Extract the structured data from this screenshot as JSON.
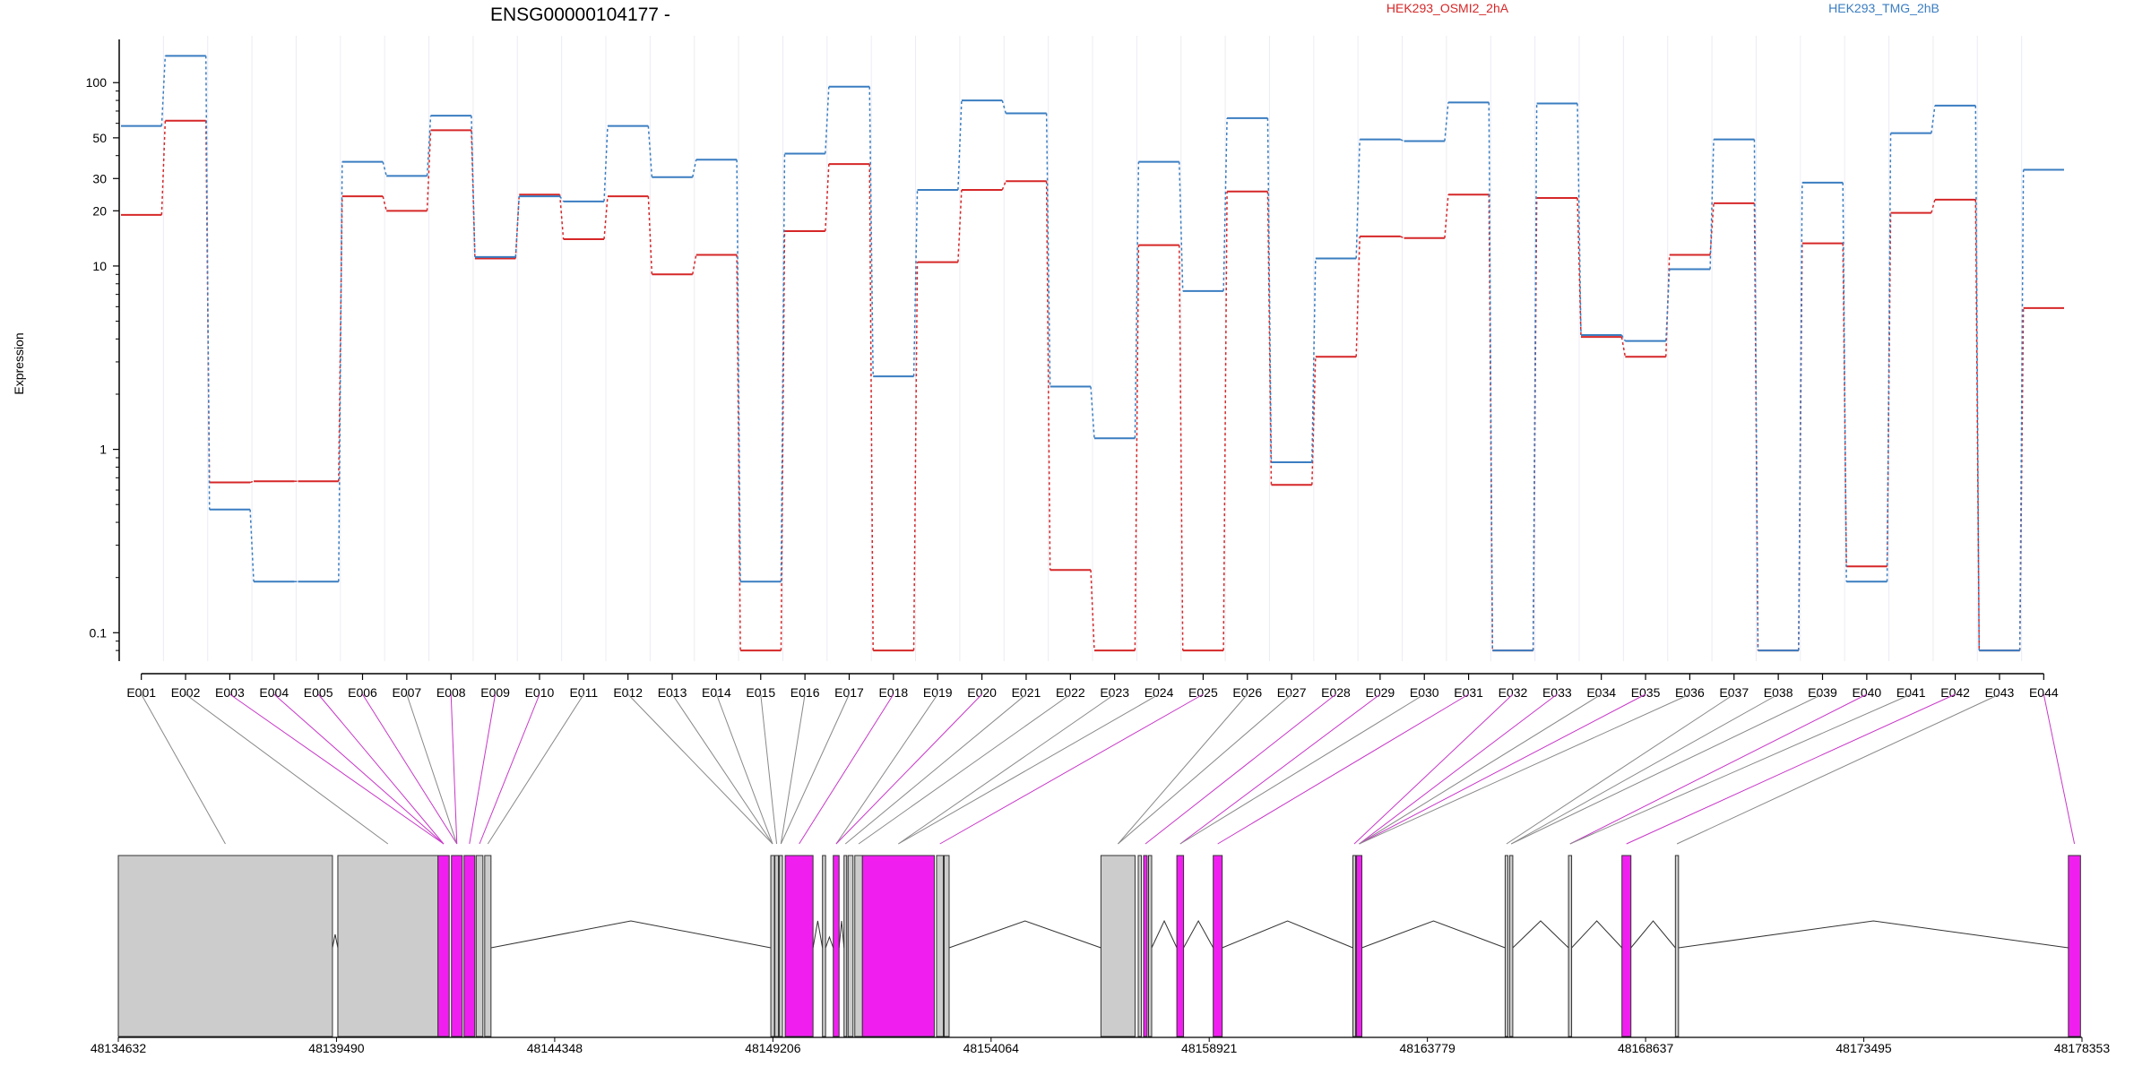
{
  "chart_data": {
    "type": "line",
    "title": "ENSG00000104177 -",
    "ylabel": "Expression",
    "y_scale": "log",
    "ylim": [
      0.07,
      180
    ],
    "y_ticks": [
      "0.1",
      "1",
      "10",
      "20",
      "30",
      "50",
      "100"
    ],
    "categories": [
      "E001",
      "E002",
      "E003",
      "E004",
      "E005",
      "E006",
      "E007",
      "E008",
      "E009",
      "E010",
      "E011",
      "E012",
      "E013",
      "E014",
      "E015",
      "E016",
      "E017",
      "E018",
      "E019",
      "E020",
      "E021",
      "E022",
      "E023",
      "E024",
      "E025",
      "E026",
      "E027",
      "E028",
      "E029",
      "E030",
      "E031",
      "E032",
      "E033",
      "E034",
      "E035",
      "E036",
      "E037",
      "E038",
      "E039",
      "E040",
      "E041",
      "E042",
      "E043",
      "E044"
    ],
    "series": [
      {
        "name": "HEK293_OSMI2_2hA",
        "color": "#d62728",
        "values": [
          19,
          62,
          0.66,
          0.67,
          0.67,
          24,
          20,
          55,
          11,
          24.5,
          14,
          24,
          9,
          11.5,
          0.08,
          15.5,
          36,
          0.08,
          10.5,
          26,
          29,
          0.22,
          0.08,
          13,
          0.08,
          25.5,
          0.64,
          3.2,
          14.5,
          14.2,
          24.5,
          0.08,
          23.5,
          4.1,
          3.2,
          11.5,
          22,
          0.08,
          13.3,
          0.23,
          19.5,
          23,
          0.08,
          5.9
        ]
      },
      {
        "name": "HEK293_TMG_2hB",
        "color": "#3a7dc1",
        "values": [
          58,
          140,
          0.47,
          0.19,
          0.19,
          37,
          31,
          66,
          11.2,
          24,
          22.5,
          58,
          30.5,
          38,
          0.19,
          41,
          95,
          2.5,
          26,
          80,
          68,
          2.2,
          1.15,
          37,
          7.3,
          64,
          0.85,
          11,
          49,
          48,
          78,
          0.08,
          77,
          4.2,
          3.9,
          9.6,
          49,
          0.08,
          28.5,
          0.19,
          53,
          75,
          0.08,
          33.5
        ]
      }
    ],
    "genome": {
      "tick_labels": [
        "48134632",
        "48139490",
        "48144348",
        "48149206",
        "48154064",
        "48158921",
        "48163779",
        "48168637",
        "48173495",
        "48178353"
      ],
      "tick_values": [
        48134632,
        48139490,
        48144348,
        48149206,
        48154064,
        48158921,
        48163779,
        48168637,
        48173495,
        48178353
      ],
      "exon_coords": [
        [
          48134632,
          48139400
        ],
        [
          48139520,
          48141750
        ],
        [
          48141750,
          48142000
        ],
        [
          48142050,
          48142290
        ],
        [
          48142330,
          48142570
        ],
        [
          48142600,
          48142750
        ],
        [
          48142790,
          48142930
        ],
        [
          48149160,
          48149240
        ],
        [
          48149250,
          48149330
        ],
        [
          48149350,
          48149420
        ],
        [
          48149480,
          48150100
        ],
        [
          48150310,
          48150380
        ],
        [
          48150550,
          48150680
        ],
        [
          48150790,
          48150850
        ],
        [
          48150880,
          48150990
        ],
        [
          48151030,
          48151200
        ],
        [
          48151200,
          48152800
        ],
        [
          48152850,
          48153000
        ],
        [
          48153020,
          48153130
        ],
        [
          48156510,
          48157270
        ],
        [
          48157340,
          48157410
        ],
        [
          48157460,
          48157540
        ],
        [
          48157570,
          48157640
        ],
        [
          48158200,
          48158350
        ],
        [
          48159010,
          48159210
        ],
        [
          48162120,
          48162180
        ],
        [
          48162200,
          48162320
        ],
        [
          48165510,
          48165570
        ],
        [
          48165610,
          48165680
        ],
        [
          48166920,
          48166990
        ],
        [
          48168110,
          48168310
        ],
        [
          48169300,
          48169370
        ],
        [
          48178050,
          48178320
        ]
      ],
      "exon_highlight": [
        false,
        false,
        true,
        true,
        true,
        false,
        false,
        false,
        false,
        false,
        true,
        false,
        true,
        false,
        false,
        false,
        true,
        false,
        false,
        false,
        false,
        true,
        false,
        true,
        true,
        false,
        true,
        false,
        false,
        false,
        true,
        false,
        true
      ],
      "exon_map": [
        0,
        1,
        2,
        2,
        2,
        3,
        3,
        3,
        4,
        5,
        6,
        7,
        7,
        7,
        8,
        9,
        9,
        10,
        12,
        12,
        13,
        15,
        16,
        16,
        17,
        19,
        19,
        21,
        23,
        23,
        24,
        25,
        26,
        26,
        26,
        26,
        27,
        28,
        28,
        29,
        29,
        30,
        31,
        32
      ],
      "map_highlight": [
        false,
        false,
        true,
        true,
        true,
        true,
        false,
        true,
        true,
        true,
        false,
        false,
        false,
        false,
        false,
        false,
        false,
        true,
        false,
        true,
        false,
        false,
        false,
        false,
        true,
        false,
        false,
        true,
        true,
        false,
        true,
        true,
        true,
        false,
        true,
        false,
        false,
        false,
        false,
        true,
        false,
        true,
        false,
        true
      ],
      "intron_peaks": [
        0.25,
        0.5,
        0.2,
        0.5,
        0.2,
        0.5,
        0.5,
        0.5,
        0.5,
        0.5,
        0.5,
        0.2,
        0.5,
        0.5,
        0.5,
        0.3,
        0.5,
        0.5,
        0.5,
        0.5,
        0.5,
        0.5,
        0.5,
        0.5,
        0.5,
        0.5,
        0.5,
        0.5,
        0.5,
        0.5,
        0.5,
        0.5
      ]
    }
  }
}
